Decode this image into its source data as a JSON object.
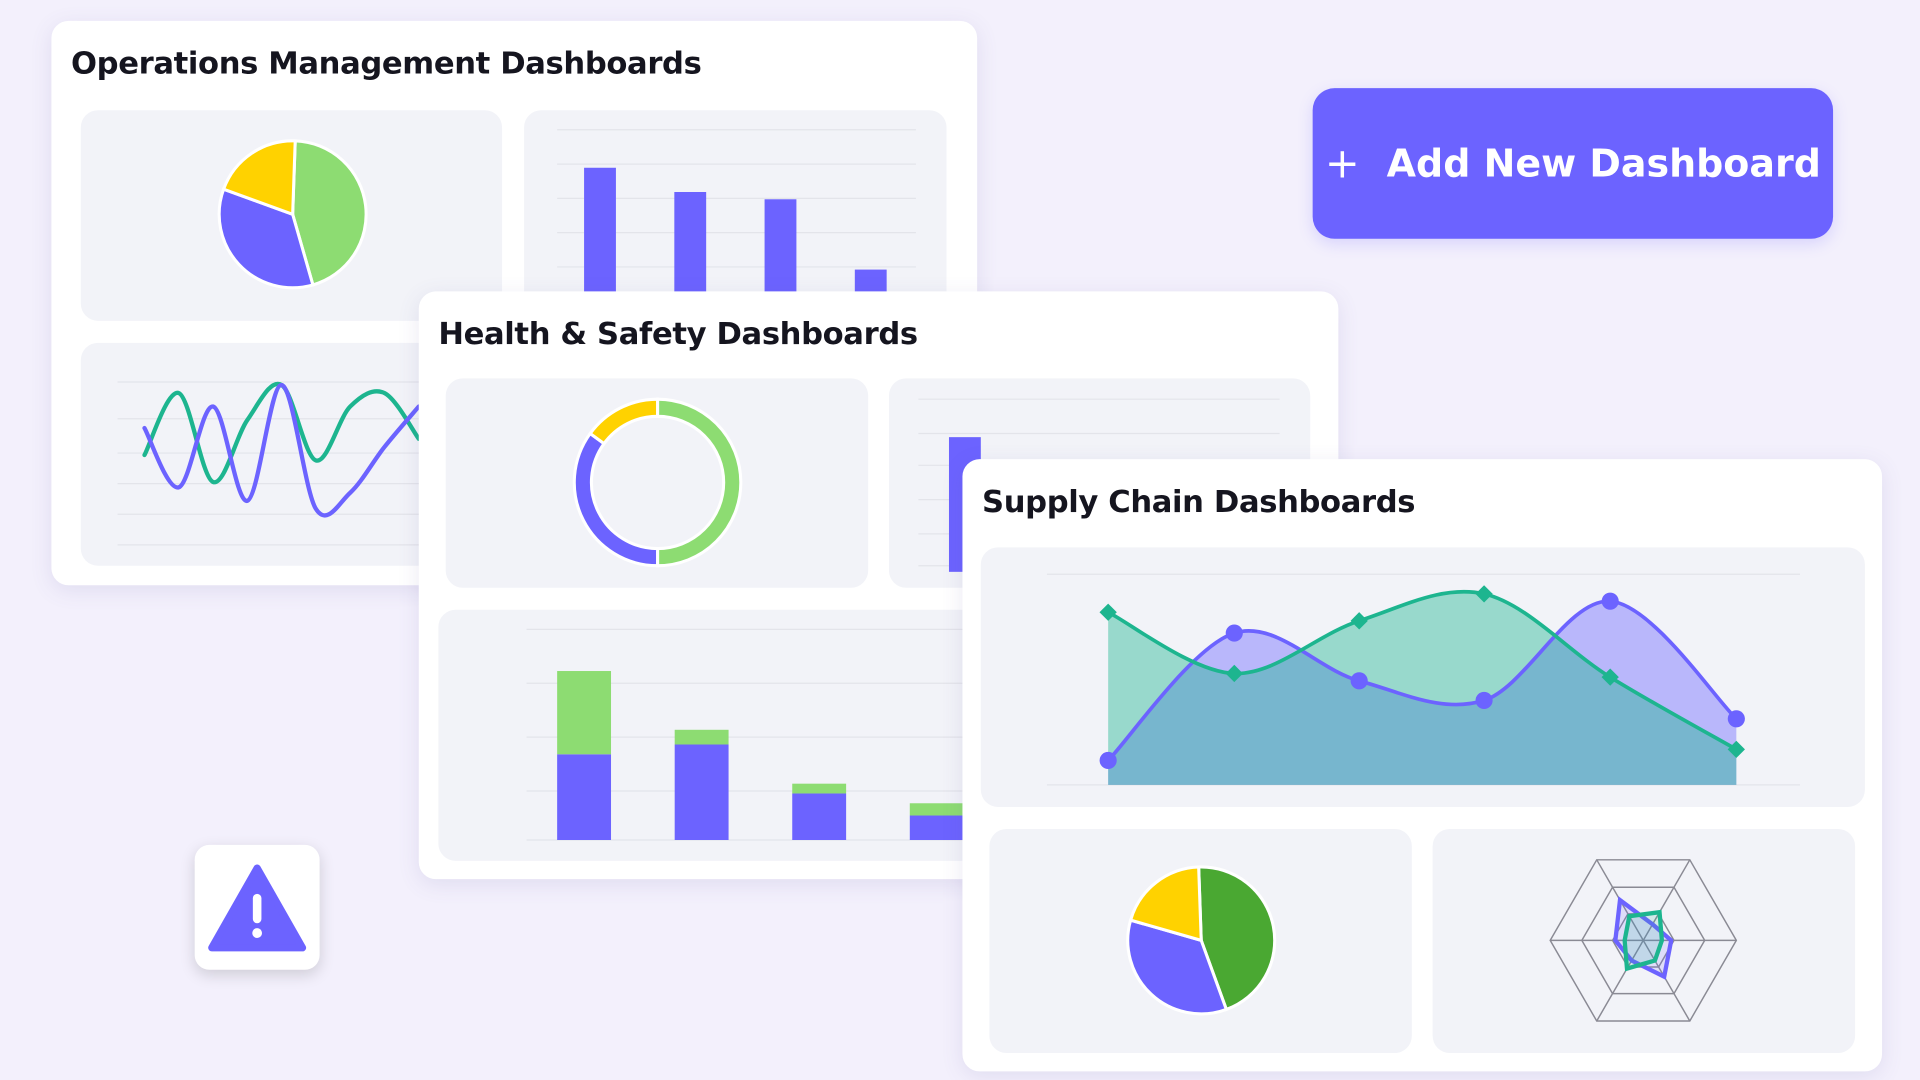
{
  "colors": {
    "accent": "#6c63ff",
    "green": "#8ddc72",
    "yellow": "#ffd200",
    "teal": "#1db58f",
    "dark_green": "#4aa832",
    "tile": "#f2f3f8",
    "background": "#f3f0fc"
  },
  "add_button": {
    "icon": "plus-icon",
    "label": "Add New Dashboard"
  },
  "warning": {
    "icon": "warning-triangle-icon"
  },
  "cards": [
    {
      "title": "Operations Management Dashboards"
    },
    {
      "title": "Health & Safety Dashboards"
    },
    {
      "title": "Supply Chain Dashboards"
    }
  ],
  "chart_data": [
    {
      "card": "Operations Management Dashboards",
      "type": "pie",
      "values": [
        45,
        35,
        20
      ],
      "colors": [
        "#8ddc72",
        "#6c63ff",
        "#ffd200"
      ]
    },
    {
      "card": "Operations Management Dashboards",
      "type": "bar",
      "values": [
        100,
        80,
        74,
        16
      ],
      "colors": [
        "#6c63ff"
      ]
    },
    {
      "card": "Operations Management Dashboards",
      "type": "line",
      "series": [
        {
          "values": [
            22,
            45,
            12,
            35,
            48,
            20,
            40,
            45,
            28
          ]
        },
        {
          "values": [
            32,
            10,
            40,
            5,
            48,
            2,
            8,
            25,
            40
          ]
        }
      ],
      "colors": [
        "#1db58f",
        "#6c63ff"
      ]
    },
    {
      "card": "Health & Safety Dashboards",
      "type": "pie",
      "donut": true,
      "values": [
        50,
        35,
        15
      ],
      "colors": [
        "#8ddc72",
        "#6c63ff",
        "#ffd200"
      ]
    },
    {
      "card": "Health & Safety Dashboards",
      "type": "bar",
      "values": [
        100
      ],
      "colors": [
        "#6c63ff"
      ]
    },
    {
      "card": "Health & Safety Dashboards",
      "type": "bar",
      "stacked": true,
      "series": [
        {
          "values": [
            70,
            78,
            38,
            20
          ]
        },
        {
          "values": [
            68,
            12,
            8,
            10
          ]
        }
      ],
      "colors": [
        "#6c63ff",
        "#8ddc72"
      ]
    },
    {
      "card": "Supply Chain Dashboards",
      "type": "area",
      "series": [
        {
          "values": [
            20,
            124,
            85,
            69,
            150,
            54
          ]
        },
        {
          "values": [
            141,
            91,
            134,
            156,
            88,
            29
          ]
        }
      ],
      "colors": [
        "#6c63ff",
        "#1db58f"
      ]
    },
    {
      "card": "Supply Chain Dashboards",
      "type": "pie",
      "values": [
        45,
        35,
        20
      ],
      "colors": [
        "#4aa832",
        "#6c63ff",
        "#ffd200"
      ]
    },
    {
      "card": "Supply Chain Dashboards",
      "type": "radar",
      "series": [
        {
          "values": [
            0.3,
            0.45,
            0.25,
            0.3,
            0.5,
            0.2
          ]
        },
        {
          "values": [
            0.2,
            0.25,
            0.35,
            0.2,
            0.3,
            0.35
          ]
        }
      ],
      "colors": [
        "#6c63ff",
        "#1db58f"
      ]
    }
  ]
}
